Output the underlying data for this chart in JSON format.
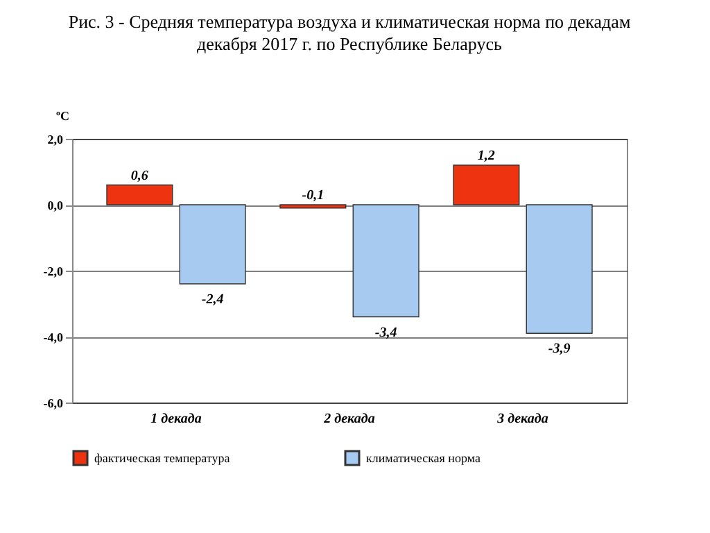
{
  "chart_data": {
    "type": "bar",
    "title": "Рис. 3 - Средняя температура воздуха и климатическая норма по декадам декабря 2017 г. по Республике Беларусь",
    "ylabel": "ºС",
    "categories": [
      "1 декада",
      "2 декада",
      "3 декада"
    ],
    "series": [
      {
        "name": "фактическая температура",
        "color": "#ee3311",
        "values": [
          0.6,
          -0.1,
          1.2
        ],
        "value_labels": [
          "0,6",
          "-0,1",
          "1,2"
        ]
      },
      {
        "name": "климатическая норма",
        "color": "#a6caf0",
        "values": [
          -2.4,
          -3.4,
          -3.9
        ],
        "value_labels": [
          "-2,4",
          "-3,4",
          "-3,9"
        ]
      }
    ],
    "ylim": [
      -6,
      2
    ],
    "yticks": [
      {
        "value": -6,
        "label": "-6,0"
      },
      {
        "value": -4,
        "label": "-4,0"
      },
      {
        "value": -2,
        "label": "-2,0"
      },
      {
        "value": 0,
        "label": "0,0"
      },
      {
        "value": 2,
        "label": "2,0"
      }
    ],
    "grid": "y",
    "legend": "bottom"
  }
}
